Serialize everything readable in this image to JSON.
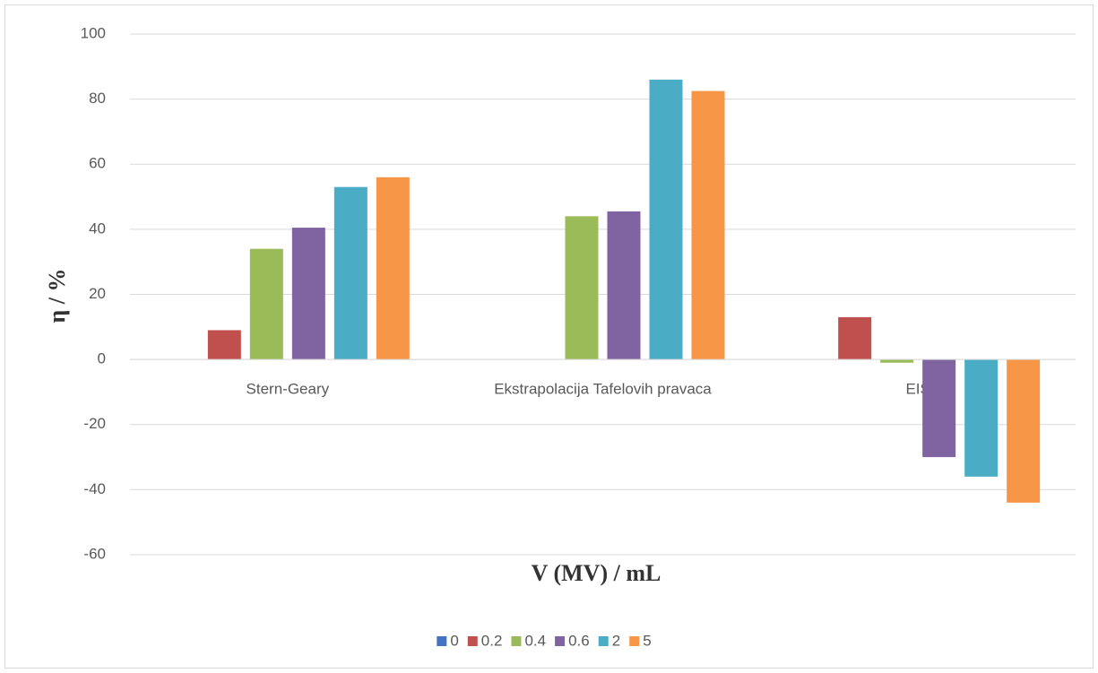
{
  "chart_data": {
    "type": "bar",
    "x_label": "V (MV) / mL",
    "y_label": "η / %",
    "categories": [
      "Stern-Geary",
      "Ekstrapolacija Tafelovih pravaca",
      "EIS"
    ],
    "series": [
      {
        "name": "0",
        "color": "#4472c4",
        "values": [
          0,
          0,
          0
        ]
      },
      {
        "name": "0.2",
        "color": "#c0504d",
        "values": [
          9,
          0,
          13
        ]
      },
      {
        "name": "0.4",
        "color": "#9bbb59",
        "values": [
          34,
          44,
          -1
        ]
      },
      {
        "name": "0.6",
        "color": "#8064a2",
        "values": [
          40.5,
          45.5,
          -30
        ]
      },
      {
        "name": "2",
        "color": "#4bacc6",
        "values": [
          53,
          86,
          -36
        ]
      },
      {
        "name": "5",
        "color": "#f79646",
        "values": [
          56,
          82.5,
          -44
        ]
      }
    ],
    "ylim": [
      -60,
      100
    ],
    "yticks": [
      -60,
      -40,
      -20,
      0,
      20,
      40,
      60,
      80,
      100
    ],
    "grid": true,
    "legend": "bottom"
  }
}
